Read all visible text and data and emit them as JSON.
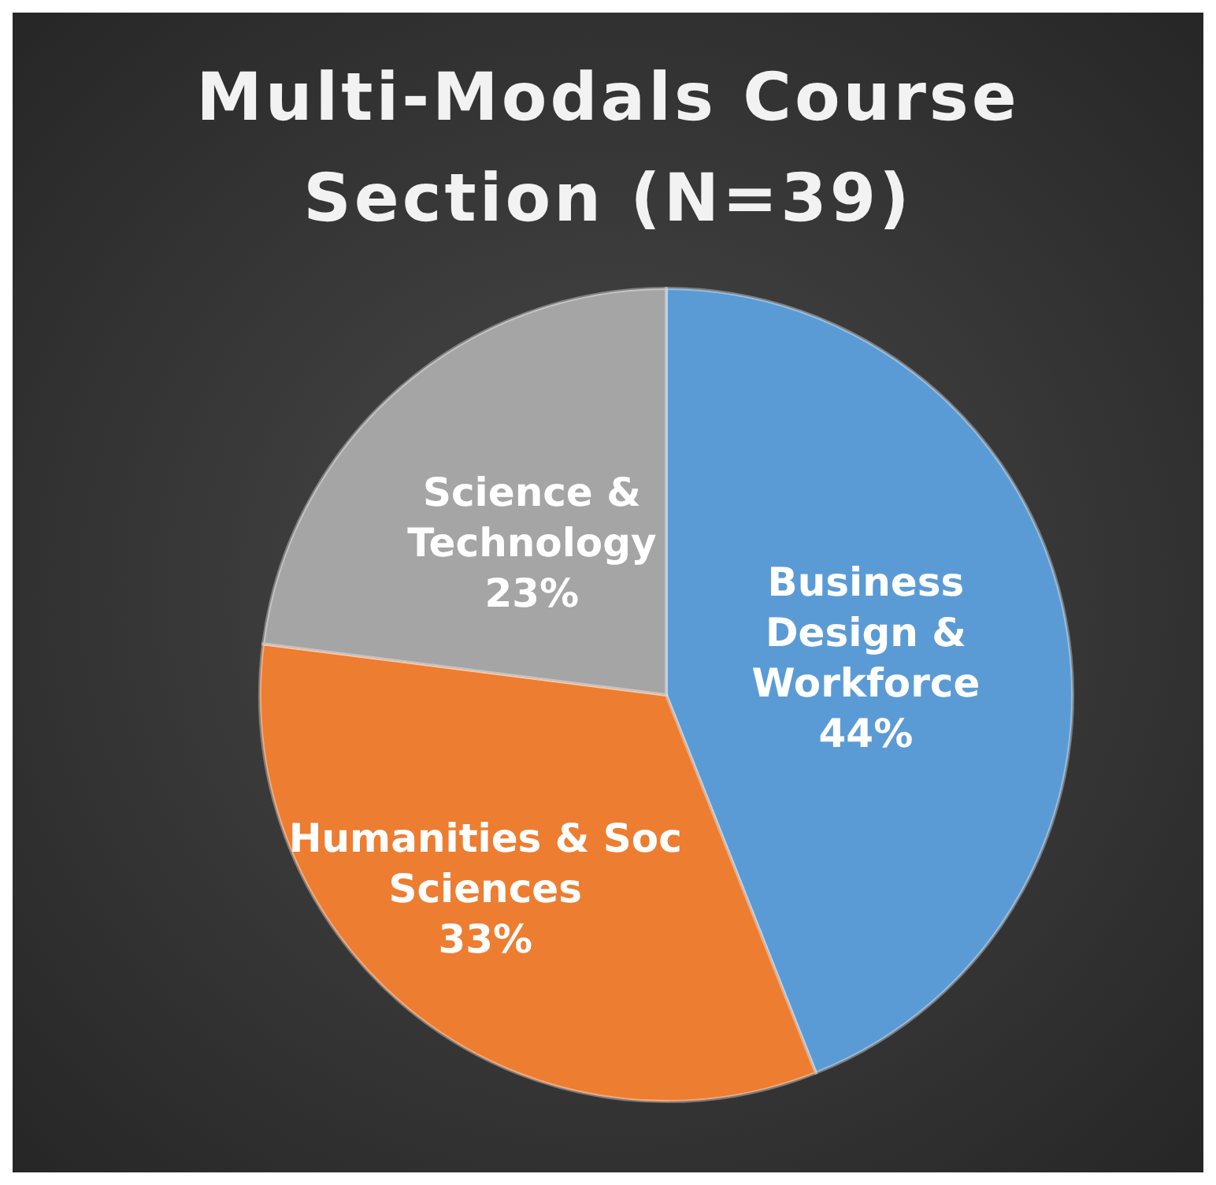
{
  "chart_data": {
    "type": "pie",
    "title": "Multi-Modals Course Section (N=39)",
    "categories": [
      "Business Design & Workforce",
      "Humanities & Soc Sciences",
      "Science & Technology"
    ],
    "values": [
      44,
      33,
      23
    ],
    "colors": [
      "#5b9bd5",
      "#ed7d31",
      "#a5a5a5"
    ],
    "value_labels": [
      "44%",
      "33%",
      "23%"
    ],
    "legend": false
  }
}
